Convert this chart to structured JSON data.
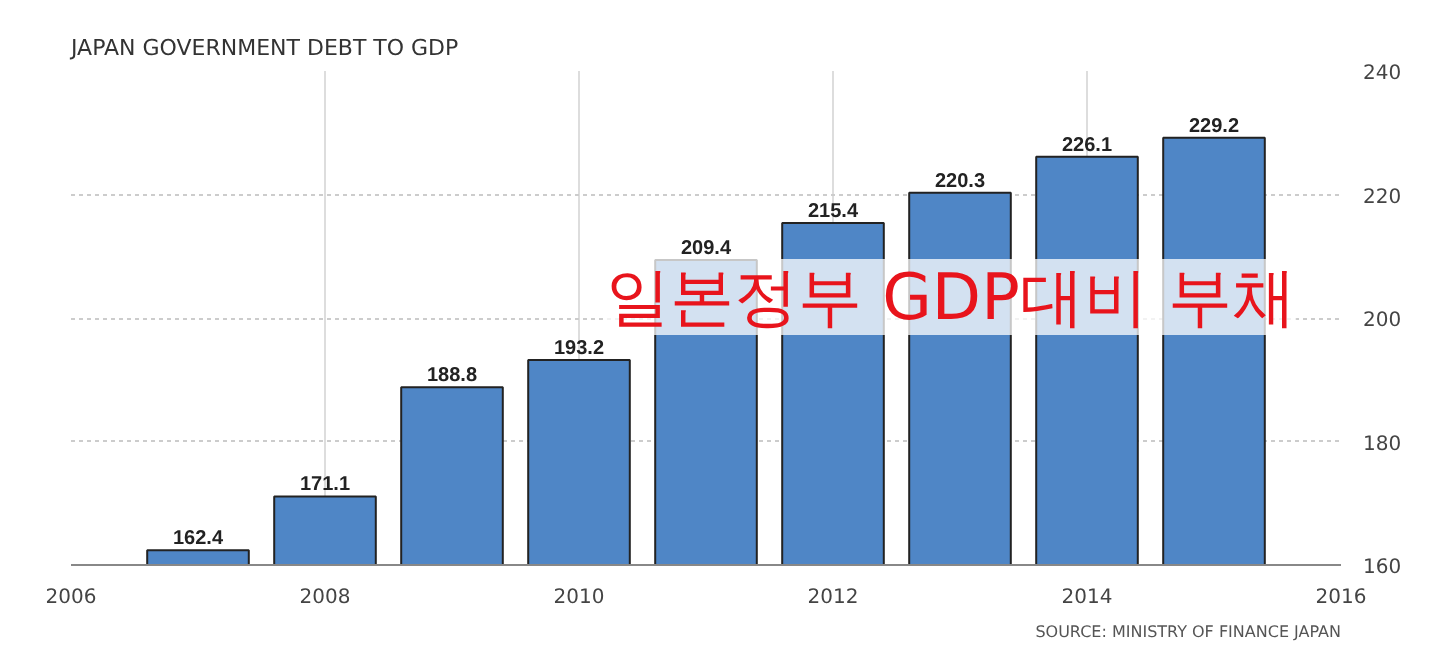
{
  "chart_data": {
    "type": "bar",
    "title": "JAPAN GOVERNMENT DEBT TO GDP",
    "x": [
      2007,
      2008,
      2009,
      2010,
      2011,
      2012,
      2013,
      2014,
      2015
    ],
    "values": [
      162.4,
      171.1,
      188.8,
      193.2,
      209.4,
      215.4,
      220.3,
      226.1,
      229.2
    ],
    "color": "#4f86c6",
    "data_labels": true,
    "xlim": [
      2006,
      2016
    ],
    "xticks": [
      2006,
      2008,
      2010,
      2012,
      2014,
      2016
    ],
    "ylim": [
      160,
      240
    ],
    "yticks": [
      160,
      180,
      200,
      220,
      240
    ],
    "grid": true,
    "annotations": [
      "일본정부 GDP대비 부채",
      "SOURCE: MINISTRY OF FINANCE JAPAN"
    ]
  }
}
